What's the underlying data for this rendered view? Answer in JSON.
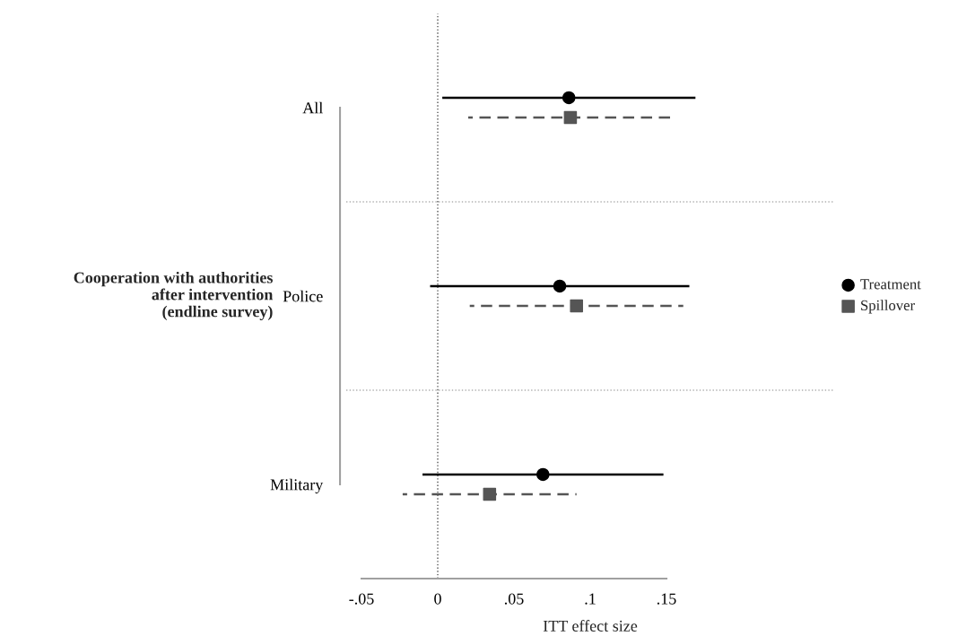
{
  "chart_data": {
    "type": "scatter",
    "orientation": "horizontal",
    "ylabel": "Cooperation with authorities\nafter intervention\n(endline survey)",
    "xlabel": "ITT effect size",
    "categories": [
      "All",
      "Police",
      "Military"
    ],
    "series": [
      {
        "name": "Treatment",
        "color": "#000000",
        "marker": "circle",
        "line_style": "solid",
        "values": [
          0.086,
          0.08,
          0.069
        ],
        "errors": [
          [
            0.003,
            0.169
          ],
          [
            -0.005,
            0.165
          ],
          [
            -0.01,
            0.148
          ]
        ]
      },
      {
        "name": "Spillover",
        "color": "#555555",
        "marker": "square",
        "line_style": "dashed",
        "values": [
          0.087,
          0.091,
          0.034
        ],
        "errors": [
          [
            0.02,
            0.154
          ],
          [
            0.021,
            0.161
          ],
          [
            -0.023,
            0.091
          ]
        ]
      }
    ],
    "xlim": [
      -0.06,
      0.26
    ],
    "xticks": [
      {
        "value": -0.05,
        "label": "-.05"
      },
      0,
      {
        "value": 0.05,
        "label": ".05"
      },
      {
        "value": 0.1,
        "label": ".1"
      },
      {
        "value": 0.15,
        "label": ".15"
      }
    ],
    "ref_lines": [
      {
        "axis": "x",
        "value": 0,
        "color": "#555555",
        "line_style": "dotted"
      }
    ],
    "grid": false,
    "legend": "right"
  }
}
